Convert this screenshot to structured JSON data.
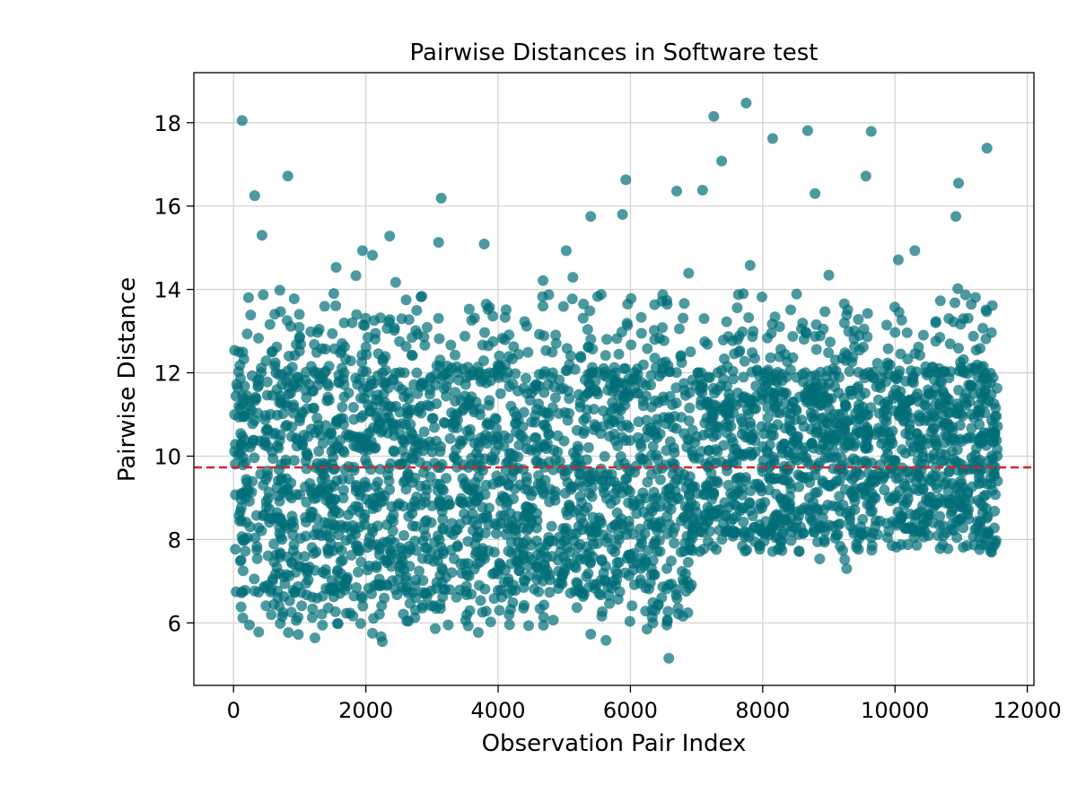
{
  "chart_data": {
    "type": "scatter",
    "title": "Pairwise Distances in Software test",
    "xlabel": "Observation Pair Index",
    "ylabel": "Pairwise Distance",
    "xlim": [
      -600,
      12100
    ],
    "ylim": [
      4.5,
      19.2
    ],
    "x_ticks": [
      0,
      2000,
      4000,
      6000,
      8000,
      10000,
      12000
    ],
    "x_tick_labels": [
      "0",
      "2000",
      "4000",
      "6000",
      "8000",
      "10000",
      "12000"
    ],
    "y_ticks": [
      6,
      8,
      10,
      12,
      14,
      16,
      18
    ],
    "y_tick_labels": [
      "6",
      "8",
      "10",
      "12",
      "14",
      "16",
      "18"
    ],
    "grid": true,
    "point_color": "#006d77",
    "point_opacity": 0.7,
    "reference_line": {
      "type": "horizontal",
      "y": 9.73,
      "color": "#d62728",
      "style": "dashed"
    },
    "n_points": 11550,
    "segments": [
      {
        "x_range": [
          0,
          6950
        ],
        "dense_y_range": [
          6.8,
          12.0
        ],
        "mean": 9.4
      },
      {
        "x_range": [
          6950,
          11550
        ],
        "dense_y_range": [
          8.2,
          12.0
        ],
        "mean": 10.2
      }
    ],
    "outliers": [
      {
        "x": 130,
        "y": 18.05
      },
      {
        "x": 320,
        "y": 16.25
      },
      {
        "x": 430,
        "y": 15.3
      },
      {
        "x": 820,
        "y": 16.72
      },
      {
        "x": 1550,
        "y": 14.53
      },
      {
        "x": 1850,
        "y": 14.33
      },
      {
        "x": 1950,
        "y": 14.93
      },
      {
        "x": 2100,
        "y": 14.82
      },
      {
        "x": 2360,
        "y": 15.28
      },
      {
        "x": 2450,
        "y": 14.17
      },
      {
        "x": 3100,
        "y": 15.13
      },
      {
        "x": 3140,
        "y": 16.19
      },
      {
        "x": 3790,
        "y": 15.09
      },
      {
        "x": 4680,
        "y": 14.21
      },
      {
        "x": 5030,
        "y": 14.93
      },
      {
        "x": 5130,
        "y": 14.29
      },
      {
        "x": 5400,
        "y": 15.75
      },
      {
        "x": 5880,
        "y": 15.8
      },
      {
        "x": 5930,
        "y": 16.63
      },
      {
        "x": 6700,
        "y": 16.36
      },
      {
        "x": 6880,
        "y": 14.39
      },
      {
        "x": 7090,
        "y": 16.38
      },
      {
        "x": 7260,
        "y": 18.15
      },
      {
        "x": 7380,
        "y": 17.08
      },
      {
        "x": 7750,
        "y": 18.47
      },
      {
        "x": 7810,
        "y": 14.58
      },
      {
        "x": 8150,
        "y": 17.62
      },
      {
        "x": 8680,
        "y": 17.81
      },
      {
        "x": 8790,
        "y": 16.3
      },
      {
        "x": 9000,
        "y": 14.34
      },
      {
        "x": 9560,
        "y": 16.72
      },
      {
        "x": 9640,
        "y": 17.79
      },
      {
        "x": 10050,
        "y": 14.71
      },
      {
        "x": 10300,
        "y": 14.93
      },
      {
        "x": 10920,
        "y": 15.75
      },
      {
        "x": 10960,
        "y": 16.55
      },
      {
        "x": 11390,
        "y": 17.39
      },
      {
        "x": 10950,
        "y": 14.02
      },
      {
        "x": 700,
        "y": 13.98
      },
      {
        "x": 240,
        "y": 5.95
      },
      {
        "x": 380,
        "y": 5.78
      },
      {
        "x": 830,
        "y": 5.77
      },
      {
        "x": 980,
        "y": 5.72
      },
      {
        "x": 1230,
        "y": 5.64
      },
      {
        "x": 2100,
        "y": 5.75
      },
      {
        "x": 2230,
        "y": 5.67
      },
      {
        "x": 2250,
        "y": 5.55
      },
      {
        "x": 3050,
        "y": 5.86
      },
      {
        "x": 3700,
        "y": 5.77
      },
      {
        "x": 5400,
        "y": 5.73
      },
      {
        "x": 5630,
        "y": 5.58
      },
      {
        "x": 6250,
        "y": 5.85
      },
      {
        "x": 6580,
        "y": 5.15
      },
      {
        "x": 6550,
        "y": 5.95
      },
      {
        "x": 9270,
        "y": 7.3
      },
      {
        "x": 9240,
        "y": 7.52
      },
      {
        "x": 8550,
        "y": 7.71
      },
      {
        "x": 7300,
        "y": 7.76
      },
      {
        "x": 10800,
        "y": 7.78
      },
      {
        "x": 10330,
        "y": 7.86
      }
    ]
  }
}
